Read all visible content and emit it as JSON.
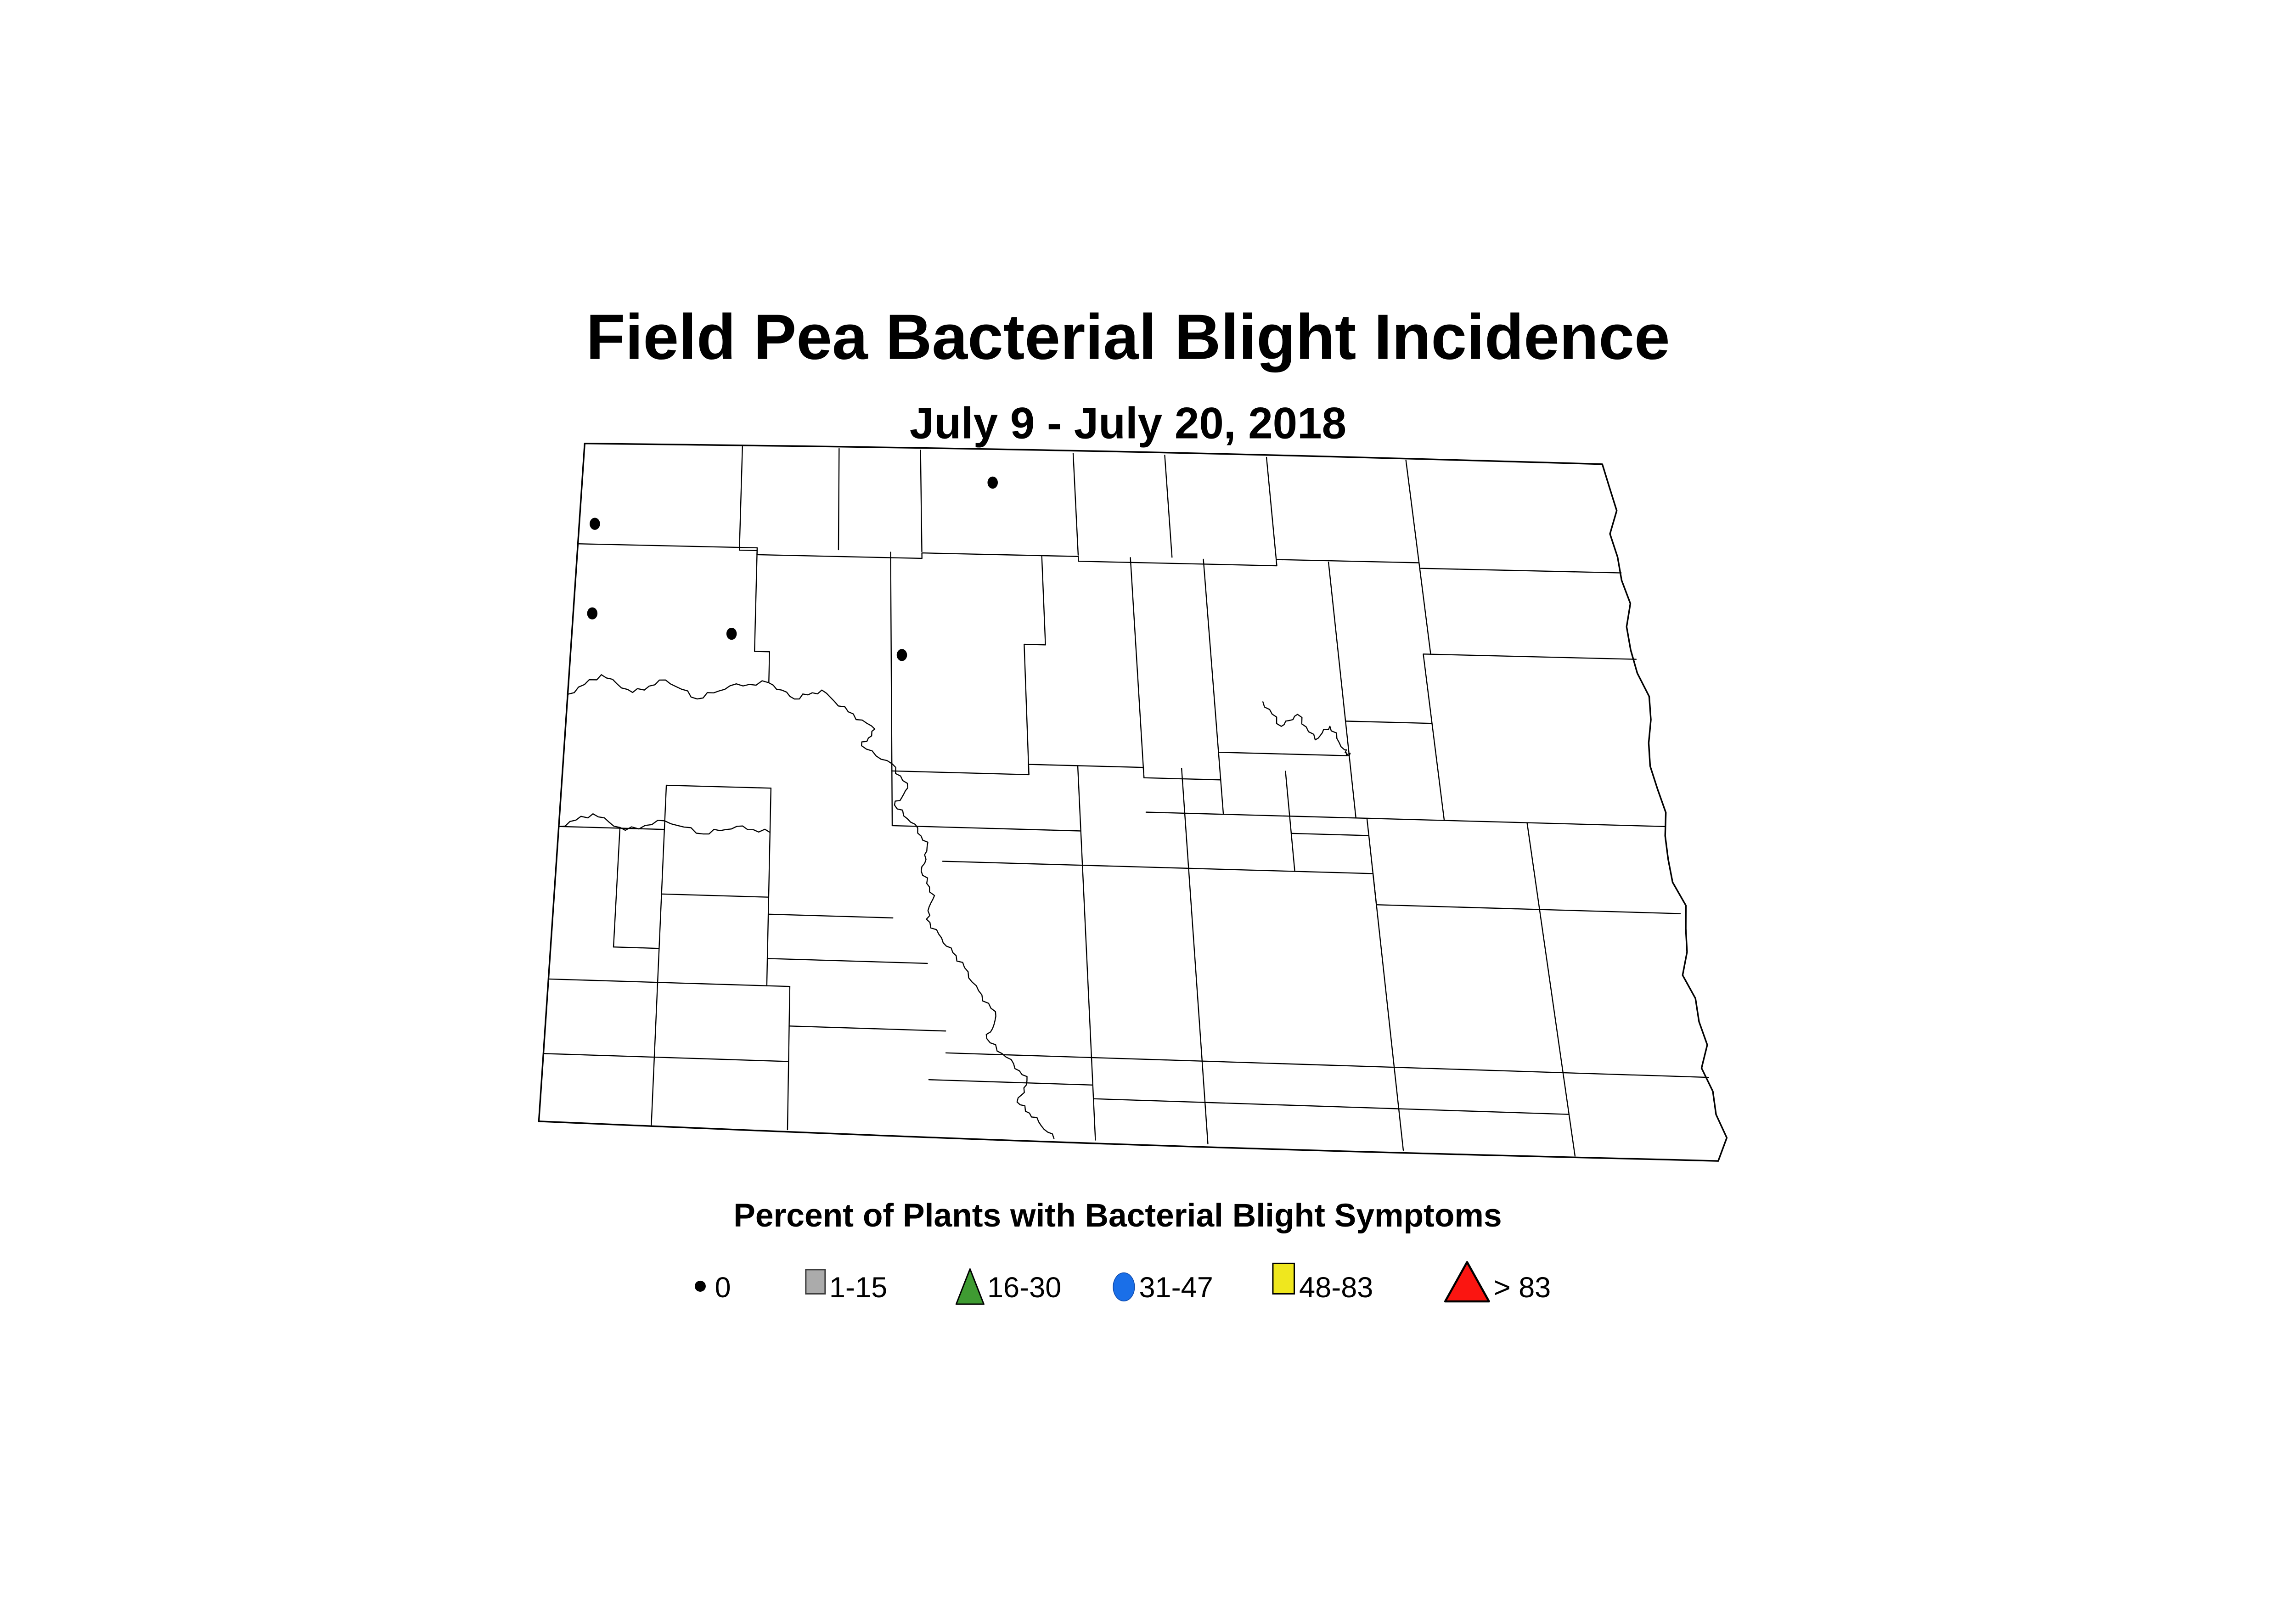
{
  "title": {
    "text": "Field Pea Bacterial Blight Incidence"
  },
  "subtitle": {
    "text": "July 9 - July 20, 2018"
  },
  "legend": {
    "title": "Percent of Plants with Bacterial Blight Symptoms",
    "items": [
      {
        "label": "0",
        "symbol": "dot",
        "fill": "#000000",
        "stroke": "#000000"
      },
      {
        "label": "1-15",
        "symbol": "square",
        "fill": "#ababab",
        "stroke": "#3c3c3c"
      },
      {
        "label": "16-30",
        "symbol": "triangle",
        "fill": "#3f9b32",
        "stroke": "#000000"
      },
      {
        "label": "31-47",
        "symbol": "circle",
        "fill": "#1a6fe8",
        "stroke": "#0d47a8"
      },
      {
        "label": "48-83",
        "symbol": "square",
        "fill": "#efe71e",
        "stroke": "#000000"
      },
      {
        "label": "> 83",
        "symbol": "triangle",
        "fill": "#fb1511",
        "stroke": "#000000"
      }
    ]
  },
  "chart_data": {
    "type": "scatter",
    "title": "Field Pea Bacterial Blight Incidence",
    "subtitle": "July 9 - July 20, 2018",
    "legend_title": "Percent of Plants with Bacterial Blight Symptoms",
    "categories": [
      "0",
      "1-15",
      "16-30",
      "31-47",
      "48-83",
      "> 83"
    ],
    "points": [
      {
        "category": "0",
        "value": 0,
        "location": "north-central North Dakota"
      },
      {
        "category": "0",
        "value": 0,
        "location": "far northwest North Dakota"
      },
      {
        "category": "0",
        "value": 0,
        "location": "west-northwest North Dakota"
      },
      {
        "category": "0",
        "value": 0,
        "location": "northwest North Dakota"
      },
      {
        "category": "0",
        "value": 0,
        "location": "north-central-west North Dakota"
      }
    ]
  },
  "map": {
    "region": "North Dakota county map",
    "markers": [
      {
        "u": 0.4,
        "v": 0.045,
        "category": "0"
      },
      {
        "u": 0.015,
        "v": 0.118,
        "category": "0"
      },
      {
        "u": 0.018,
        "v": 0.25,
        "category": "0"
      },
      {
        "u": 0.15,
        "v": 0.275,
        "category": "0"
      },
      {
        "u": 0.31,
        "v": 0.3,
        "category": "0"
      }
    ],
    "county_lines": [
      [
        [
          0.155,
          0
        ],
        [
          0.155,
          0.152
        ],
        [
          0.172,
          0.152
        ],
        [
          0.172,
          0.3
        ],
        [
          0.186,
          0.3
        ],
        [
          0.186,
          0.345
        ]
      ],
      [
        [
          0.25,
          0
        ],
        [
          0.25,
          0.148
        ]
      ],
      [
        [
          0.33,
          0
        ],
        [
          0.33,
          0.148
        ]
      ],
      [
        [
          0.48,
          0
        ],
        [
          0.48,
          0.148
        ]
      ],
      [
        [
          0.57,
          0
        ],
        [
          0.57,
          0.148
        ]
      ],
      [
        [
          0.67,
          0
        ],
        [
          0.67,
          0.148
        ]
      ],
      [
        [
          0.807,
          0
        ],
        [
          0.807,
          0.148
        ]
      ],
      [
        [
          0,
          0.148
        ],
        [
          0.172,
          0.148
        ],
        [
          0.172,
          0.158
        ],
        [
          0.33,
          0.158
        ],
        [
          0.33,
          0.15
        ],
        [
          0.48,
          0.15
        ],
        [
          0.48,
          0.157
        ],
        [
          0.67,
          0.157
        ],
        [
          0.67,
          0.148
        ],
        [
          0.807,
          0.148
        ],
        [
          0.807,
          0.156
        ],
        [
          1,
          0.156
        ]
      ],
      [
        [
          0.3,
          0.15
        ],
        [
          0.3,
          0.55
        ]
      ],
      [
        [
          0.445,
          0.15
        ],
        [
          0.445,
          0.28
        ],
        [
          0.425,
          0.28
        ],
        [
          0.425,
          0.47
        ]
      ],
      [
        [
          0.53,
          0.15
        ],
        [
          0.53,
          0.47
        ]
      ],
      [
        [
          0.6,
          0.15
        ],
        [
          0.6,
          0.52
        ]
      ],
      [
        [
          0.72,
          0.15
        ],
        [
          0.72,
          0.52
        ]
      ],
      [
        [
          0.807,
          0.156
        ],
        [
          0.807,
          0.28
        ],
        [
          0.8,
          0.28
        ],
        [
          0.8,
          0.52
        ]
      ],
      [
        [
          0.807,
          0.28
        ],
        [
          1,
          0.28
        ]
      ],
      [
        [
          0.72,
          0.38
        ],
        [
          0.8,
          0.38
        ]
      ],
      [
        [
          0.6,
          0.43
        ],
        [
          0.72,
          0.43
        ]
      ],
      [
        [
          0.3,
          0.47
        ],
        [
          0.425,
          0.47
        ],
        [
          0.425,
          0.455
        ],
        [
          0.53,
          0.455
        ],
        [
          0.53,
          0.47
        ],
        [
          0.6,
          0.47
        ]
      ],
      [
        [
          0.53,
          0.52
        ],
        [
          1,
          0.52
        ]
      ],
      [
        [
          0.66,
          0.455
        ],
        [
          0.66,
          0.6
        ]
      ],
      [
        [
          0.66,
          0.545
        ],
        [
          0.73,
          0.545
        ]
      ],
      [
        [
          0.73,
          0.52
        ],
        [
          0.73,
          0.645
        ]
      ],
      [
        [
          0.875,
          0.52
        ],
        [
          0.875,
          0.645
        ]
      ],
      [
        [
          0.73,
          0.645
        ],
        [
          1,
          0.645
        ]
      ],
      [
        [
          0.47,
          0.455
        ],
        [
          0.47,
          0.6
        ]
      ],
      [
        [
          0.565,
          0.455
        ],
        [
          0.565,
          0.6
        ]
      ],
      [
        [
          0.3,
          0.55
        ],
        [
          0.47,
          0.55
        ]
      ],
      [
        [
          0.345,
          0.6
        ],
        [
          0.73,
          0.6
        ]
      ],
      [
        [
          0.47,
          0.6
        ],
        [
          0.47,
          0.88
        ]
      ],
      [
        [
          0.565,
          0.6
        ],
        [
          0.565,
          0.88
        ]
      ],
      [
        [
          0.73,
          0.6
        ],
        [
          0.73,
          0.88
        ]
      ],
      [
        [
          0.875,
          0.645
        ],
        [
          0.875,
          0.88
        ]
      ],
      [
        [
          0.19,
          0.5
        ],
        [
          0.19,
          0.79
        ]
      ],
      [
        [
          0.095,
          0.5
        ],
        [
          0.19,
          0.5
        ]
      ],
      [
        [
          0.095,
          0.5
        ],
        [
          0.095,
          0.79
        ]
      ],
      [
        [
          0.095,
          0.66
        ],
        [
          0.19,
          0.66
        ]
      ],
      [
        [
          0.055,
          0.565
        ],
        [
          0.055,
          0.74
        ]
      ],
      [
        [
          0,
          0.565
        ],
        [
          0.095,
          0.565
        ]
      ],
      [
        [
          0.055,
          0.74
        ],
        [
          0.095,
          0.74
        ]
      ],
      [
        [
          0,
          0.79
        ],
        [
          0.21,
          0.79
        ]
      ],
      [
        [
          0.19,
          0.685
        ],
        [
          0.3,
          0.685
        ]
      ],
      [
        [
          0.19,
          0.75
        ],
        [
          0.33,
          0.75
        ]
      ],
      [
        [
          0,
          0.9
        ],
        [
          0.21,
          0.9
        ]
      ],
      [
        [
          0.095,
          0.79
        ],
        [
          0.095,
          1
        ]
      ],
      [
        [
          0.21,
          0.79
        ],
        [
          0.21,
          1
        ]
      ],
      [
        [
          0.21,
          0.848
        ],
        [
          0.345,
          0.848
        ]
      ],
      [
        [
          0.33,
          0.92
        ],
        [
          0.47,
          0.92
        ]
      ],
      [
        [
          0.47,
          0.88
        ],
        [
          0.47,
          1
        ]
      ],
      [
        [
          0.565,
          0.88
        ],
        [
          0.565,
          1
        ]
      ],
      [
        [
          0.47,
          0.94
        ],
        [
          0.875,
          0.94
        ]
      ],
      [
        [
          0.73,
          0.88
        ],
        [
          0.73,
          1
        ]
      ],
      [
        [
          0.875,
          0.88
        ],
        [
          0.875,
          1
        ]
      ],
      [
        [
          0.345,
          0.88
        ],
        [
          1,
          0.88
        ]
      ]
    ],
    "rivers": [
      [
        [
          0,
          0.37
        ],
        [
          0.03,
          0.34
        ],
        [
          0.06,
          0.365
        ],
        [
          0.09,
          0.345
        ],
        [
          0.12,
          0.372
        ],
        [
          0.15,
          0.352
        ],
        [
          0.186,
          0.345
        ],
        [
          0.21,
          0.368
        ],
        [
          0.235,
          0.355
        ],
        [
          0.26,
          0.385
        ],
        [
          0.285,
          0.41
        ],
        [
          0.272,
          0.435
        ],
        [
          0.3,
          0.46
        ],
        [
          0.315,
          0.495
        ],
        [
          0.302,
          0.52
        ],
        [
          0.32,
          0.548
        ],
        [
          0.332,
          0.58
        ],
        [
          0.326,
          0.615
        ],
        [
          0.336,
          0.65
        ],
        [
          0.33,
          0.685
        ],
        [
          0.345,
          0.718
        ],
        [
          0.36,
          0.748
        ],
        [
          0.374,
          0.788
        ],
        [
          0.39,
          0.825
        ],
        [
          0.38,
          0.858
        ],
        [
          0.4,
          0.888
        ],
        [
          0.415,
          0.918
        ],
        [
          0.405,
          0.948
        ],
        [
          0.42,
          0.972
        ],
        [
          0.435,
          1.0
        ]
      ],
      [
        [
          0,
          0.565
        ],
        [
          0.03,
          0.545
        ],
        [
          0.06,
          0.568
        ],
        [
          0.095,
          0.552
        ],
        [
          0.13,
          0.57
        ],
        [
          0.16,
          0.558
        ],
        [
          0.19,
          0.565
        ]
      ],
      [
        [
          0.645,
          0.355
        ],
        [
          0.66,
          0.39
        ],
        [
          0.676,
          0.372
        ],
        [
          0.69,
          0.408
        ],
        [
          0.705,
          0.388
        ],
        [
          0.716,
          0.422
        ],
        [
          0.72,
          0.43
        ]
      ]
    ]
  }
}
